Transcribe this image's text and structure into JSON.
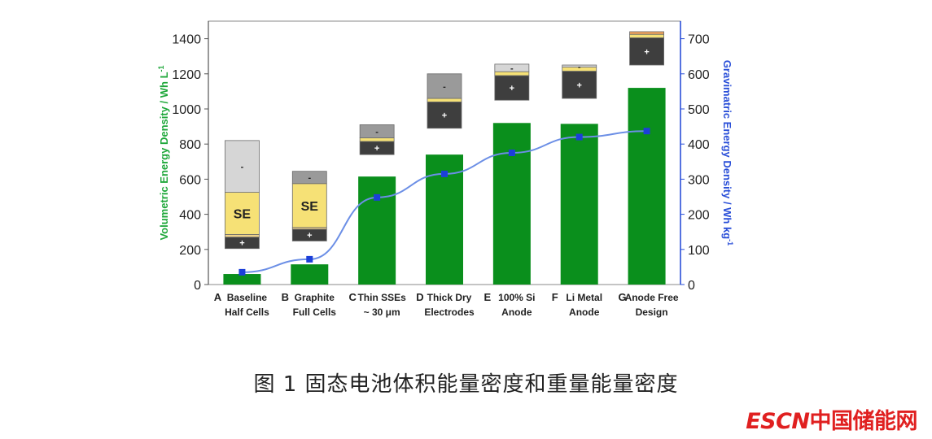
{
  "chart_data": {
    "type": "bar",
    "left_axis": {
      "label": "Volumetric Energy Density / Wh L",
      "label_sup": "-1",
      "ticks": [
        0,
        200,
        400,
        600,
        800,
        1000,
        1200,
        1400
      ],
      "range": [
        0,
        1500
      ],
      "color": "#1ea73a"
    },
    "right_axis": {
      "label": "Gravimatric Energy Density / Wh kg",
      "label_sup": "-1",
      "ticks": [
        0,
        100,
        200,
        300,
        400,
        500,
        600,
        700
      ],
      "range": [
        0,
        750
      ],
      "color": "#2a4fd8"
    },
    "categories": [
      {
        "letter": "A",
        "line1": "Baseline",
        "line2": "Half Cells"
      },
      {
        "letter": "B",
        "line1": "Graphite",
        "line2": "Full Cells"
      },
      {
        "letter": "C",
        "line1": "Thin SSEs",
        "line2": "~ 30 μm"
      },
      {
        "letter": "D",
        "line1": "Thick Dry",
        "line2": "Electrodes"
      },
      {
        "letter": "E",
        "line1": "100% Si",
        "line2": "Anode"
      },
      {
        "letter": "F",
        "line1": "Li Metal",
        "line2": "Anode"
      },
      {
        "letter": "G",
        "line1": "Anode Free",
        "line2": "Design"
      }
    ],
    "volumetric_values": [
      60,
      115,
      615,
      740,
      920,
      915,
      1120
    ],
    "gravimetric_values": [
      35,
      72,
      248,
      315,
      375,
      420,
      437
    ],
    "bar_color": "#0a8f1c",
    "line_color": "#6c8fe6",
    "marker_color": "#1c3fd9",
    "stacks": [
      {
        "layers": [
          {
            "role": "plus",
            "from": 205,
            "to": 270,
            "color": "#3e3e3e",
            "text": "+"
          },
          {
            "role": "separator",
            "from": 270,
            "to": 285,
            "color": "#efd28a",
            "text": ""
          },
          {
            "role": "electrolyte",
            "from": 285,
            "to": 525,
            "color": "#f6e176",
            "text": "SE"
          },
          {
            "role": "minus",
            "from": 525,
            "to": 820,
            "color": "#d6d6d6",
            "text": "-"
          }
        ]
      },
      {
        "layers": [
          {
            "role": "plus",
            "from": 248,
            "to": 315,
            "color": "#3e3e3e",
            "text": "+"
          },
          {
            "role": "separator",
            "from": 315,
            "to": 325,
            "color": "#efd28a",
            "text": ""
          },
          {
            "role": "electrolyte",
            "from": 325,
            "to": 575,
            "color": "#f6e176",
            "text": "SE"
          },
          {
            "role": "minus",
            "from": 575,
            "to": 645,
            "color": "#9a9a9a",
            "text": "-"
          }
        ]
      },
      {
        "layers": [
          {
            "role": "plus",
            "from": 740,
            "to": 815,
            "color": "#3e3e3e",
            "text": "+"
          },
          {
            "role": "separator",
            "from": 815,
            "to": 835,
            "color": "#f6e176",
            "text": ""
          },
          {
            "role": "minus",
            "from": 835,
            "to": 910,
            "color": "#9a9a9a",
            "text": "-"
          }
        ]
      },
      {
        "layers": [
          {
            "role": "plus",
            "from": 890,
            "to": 1040,
            "color": "#3e3e3e",
            "text": "+"
          },
          {
            "role": "separator",
            "from": 1040,
            "to": 1060,
            "color": "#f6e176",
            "text": ""
          },
          {
            "role": "minus",
            "from": 1060,
            "to": 1200,
            "color": "#9a9a9a",
            "text": "-"
          }
        ]
      },
      {
        "layers": [
          {
            "role": "plus",
            "from": 1050,
            "to": 1190,
            "color": "#3e3e3e",
            "text": "+"
          },
          {
            "role": "separator",
            "from": 1190,
            "to": 1212,
            "color": "#f6e176",
            "text": ""
          },
          {
            "role": "minus",
            "from": 1212,
            "to": 1255,
            "color": "#d6d6d6",
            "text": "-"
          }
        ]
      },
      {
        "layers": [
          {
            "role": "plus",
            "from": 1060,
            "to": 1215,
            "color": "#3e3e3e",
            "text": "+"
          },
          {
            "role": "separator",
            "from": 1215,
            "to": 1238,
            "color": "#f6e176",
            "text": ""
          },
          {
            "role": "minus",
            "from": 1238,
            "to": 1250,
            "color": "#d6d6d6",
            "text": "-"
          }
        ]
      },
      {
        "layers": [
          {
            "role": "plus",
            "from": 1250,
            "to": 1405,
            "color": "#3e3e3e",
            "text": "+"
          },
          {
            "role": "separator",
            "from": 1405,
            "to": 1425,
            "color": "#f6e176",
            "text": ""
          },
          {
            "role": "minus",
            "from": 1425,
            "to": 1440,
            "color": "#f2a35a",
            "text": ""
          }
        ]
      }
    ],
    "grid": false,
    "legend": "none"
  },
  "caption": "图 1 固态电池体积能量密度和重量能量密度",
  "logo": {
    "latin": "ESCN",
    "cn": "中国储能网"
  }
}
